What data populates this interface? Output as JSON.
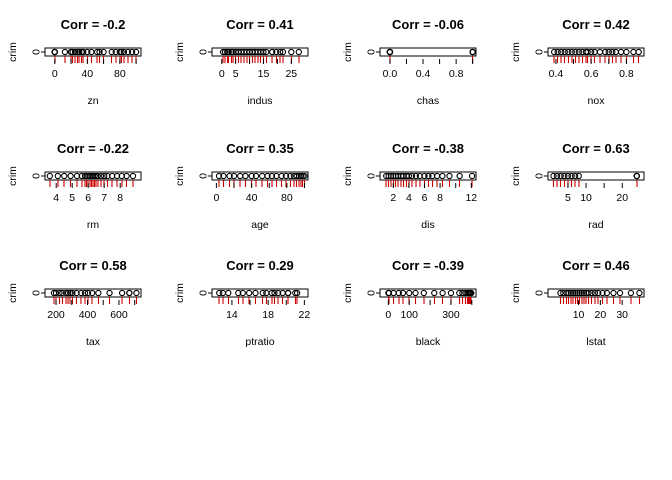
{
  "chart_data": [
    {
      "type": "scatter",
      "title": "Corr = -0.2",
      "xlabel": "zn",
      "ylabel": "crim",
      "ytick": "0",
      "xlim": [
        -12,
        106
      ],
      "xticks": [
        0,
        20,
        40,
        60,
        80,
        100
      ],
      "xtick_labels": [
        "0",
        "",
        "40",
        "",
        "80",
        ""
      ],
      "x": [
        0,
        0,
        0,
        0,
        0,
        12.5,
        20,
        20,
        22,
        25,
        28,
        30,
        33,
        35,
        40,
        45,
        52,
        55,
        60,
        70,
        75,
        80,
        82,
        85,
        90,
        95,
        100
      ],
      "y": [
        0,
        0,
        0,
        0,
        0,
        0,
        0,
        0,
        0,
        0,
        0,
        0,
        0,
        0,
        0,
        0,
        0,
        0,
        0,
        0,
        0,
        0,
        0,
        0,
        0,
        0,
        0
      ]
    },
    {
      "type": "scatter",
      "title": "Corr = 0.41",
      "xlabel": "indus",
      "ylabel": "crim",
      "ytick": "0",
      "xlim": [
        -3.5,
        31
      ],
      "xticks": [
        0,
        5,
        10,
        15,
        20,
        25
      ],
      "xtick_labels": [
        "0",
        "5",
        "",
        "15",
        "",
        "25"
      ],
      "x": [
        0.5,
        1.2,
        2,
        2.5,
        3.5,
        4,
        5,
        6,
        7,
        8,
        9,
        10,
        11,
        12,
        13,
        14,
        15,
        16,
        18.1,
        18.1,
        19.6,
        21,
        22,
        25,
        27.7
      ],
      "y": [
        0,
        0,
        0,
        0,
        0,
        0,
        0,
        0,
        0,
        0,
        0,
        0,
        0,
        0,
        0,
        0,
        0,
        0,
        0,
        0,
        0,
        0,
        0,
        0,
        0
      ]
    },
    {
      "type": "scatter",
      "title": "Corr = -0.06",
      "xlabel": "chas",
      "ylabel": "crim",
      "ytick": "0",
      "xlim": [
        -0.12,
        1.04
      ],
      "xticks": [
        0,
        0.2,
        0.4,
        0.6,
        0.8,
        1
      ],
      "xtick_labels": [
        "0.0",
        "",
        "0.4",
        "",
        "0.8",
        ""
      ],
      "x": [
        0,
        0,
        0,
        0,
        0,
        0,
        0,
        0,
        1,
        1,
        1,
        1
      ],
      "y": [
        0,
        0,
        0,
        0,
        0,
        0,
        0,
        0,
        0,
        0,
        0,
        0
      ]
    },
    {
      "type": "scatter",
      "title": "Corr = 0.42",
      "xlabel": "nox",
      "ylabel": "crim",
      "ytick": "0",
      "xlim": [
        0.355,
        0.9
      ],
      "xticks": [
        0.4,
        0.5,
        0.6,
        0.7,
        0.8
      ],
      "xtick_labels": [
        "0.4",
        "",
        "0.6",
        "",
        "0.8"
      ],
      "x": [
        0.39,
        0.41,
        0.43,
        0.45,
        0.47,
        0.49,
        0.51,
        0.53,
        0.55,
        0.57,
        0.58,
        0.6,
        0.62,
        0.65,
        0.68,
        0.7,
        0.72,
        0.74,
        0.77,
        0.8,
        0.84,
        0.87
      ],
      "y": [
        0,
        0,
        0,
        0,
        0,
        0,
        0,
        0,
        0,
        0,
        0,
        0,
        0,
        0,
        0,
        0,
        0,
        0,
        0,
        0,
        0,
        0
      ]
    },
    {
      "type": "scatter",
      "title": "Corr = -0.22",
      "xlabel": "rm",
      "ylabel": "crim",
      "ytick": "0",
      "xlim": [
        3.3,
        9.3
      ],
      "xticks": [
        4,
        5,
        6,
        7,
        8
      ],
      "xtick_labels": [
        "4",
        "5",
        "6",
        "7",
        "8"
      ],
      "x": [
        3.6,
        4.1,
        4.5,
        4.9,
        5.3,
        5.6,
        5.8,
        5.9,
        6,
        6.1,
        6.2,
        6.3,
        6.4,
        6.5,
        6.6,
        6.8,
        7,
        7.2,
        7.5,
        7.8,
        8.1,
        8.4,
        8.8
      ],
      "y": [
        0,
        0,
        0,
        0,
        0,
        0,
        0,
        0,
        0,
        0,
        0,
        0,
        0,
        0,
        0,
        0,
        0,
        0,
        0,
        0,
        0,
        0,
        0
      ]
    },
    {
      "type": "scatter",
      "title": "Corr = 0.35",
      "xlabel": "age",
      "ylabel": "crim",
      "ytick": "0",
      "xlim": [
        -5,
        104
      ],
      "xticks": [
        0,
        20,
        40,
        60,
        80,
        100
      ],
      "xtick_labels": [
        "0",
        "",
        "40",
        "",
        "80",
        ""
      ],
      "x": [
        3,
        8,
        15,
        20,
        27,
        33,
        40,
        45,
        52,
        58,
        63,
        68,
        74,
        79,
        84,
        88,
        91,
        94,
        96,
        98,
        100
      ],
      "y": [
        0,
        0,
        0,
        0,
        0,
        0,
        0,
        0,
        0,
        0,
        0,
        0,
        0,
        0,
        0,
        0,
        0,
        0,
        0,
        0,
        0
      ]
    },
    {
      "type": "scatter",
      "title": "Corr = -0.38",
      "xlabel": "dis",
      "ylabel": "crim",
      "ytick": "0",
      "xlim": [
        0.3,
        12.6
      ],
      "xticks": [
        2,
        4,
        6,
        8,
        10,
        12
      ],
      "xtick_labels": [
        "2",
        "4",
        "6",
        "8",
        "",
        "12"
      ],
      "x": [
        1.1,
        1.4,
        1.7,
        2,
        2.3,
        2.6,
        3,
        3.3,
        3.7,
        4,
        4.4,
        4.9,
        5.4,
        6,
        6.5,
        7,
        7.6,
        8.3,
        9.2,
        10.5,
        12.1
      ],
      "y": [
        0,
        0,
        0,
        0,
        0,
        0,
        0,
        0,
        0,
        0,
        0,
        0,
        0,
        0,
        0,
        0,
        0,
        0,
        0,
        0,
        0
      ]
    },
    {
      "type": "scatter",
      "title": "Corr = 0.63",
      "xlabel": "rad",
      "ylabel": "crim",
      "ytick": "0",
      "xlim": [
        -0.5,
        26
      ],
      "xticks": [
        5,
        10,
        15,
        20
      ],
      "xtick_labels": [
        "5",
        "10",
        "",
        "20"
      ],
      "x": [
        1,
        2,
        3,
        4,
        5,
        6,
        7,
        8,
        24,
        24,
        24
      ],
      "y": [
        0,
        0,
        0,
        0,
        0,
        0,
        0,
        0,
        0,
        0,
        0
      ]
    },
    {
      "type": "scatter",
      "title": "Corr = 0.58",
      "xlabel": "tax",
      "ylabel": "crim",
      "ytick": "0",
      "xlim": [
        130,
        740
      ],
      "xticks": [
        200,
        300,
        400,
        500,
        600,
        700
      ],
      "xtick_labels": [
        "200",
        "",
        "400",
        "",
        "600",
        ""
      ],
      "x": [
        187,
        200,
        222,
        240,
        264,
        277,
        290,
        304,
        330,
        360,
        384,
        403,
        430,
        469,
        540,
        620,
        666,
        666,
        711
      ],
      "y": [
        0,
        0,
        0,
        0,
        0,
        0,
        0,
        0,
        0,
        0,
        0,
        0,
        0,
        0,
        0,
        0,
        0,
        0,
        0
      ]
    },
    {
      "type": "scatter",
      "title": "Corr = 0.29",
      "xlabel": "ptratio",
      "ylabel": "crim",
      "ytick": "0",
      "xlim": [
        11.8,
        22.4
      ],
      "xticks": [
        14,
        16,
        18,
        20,
        22
      ],
      "xtick_labels": [
        "14",
        "",
        "18",
        "",
        "22"
      ],
      "x": [
        12.6,
        13,
        13.6,
        14.7,
        15.2,
        15.9,
        16.6,
        17.4,
        17.8,
        18.4,
        18.7,
        19.1,
        19.6,
        20.2,
        20.2,
        20.2,
        21,
        21.2
      ],
      "y": [
        0,
        0,
        0,
        0,
        0,
        0,
        0,
        0,
        0,
        0,
        0,
        0,
        0,
        0,
        0,
        0,
        0,
        0
      ]
    },
    {
      "type": "scatter",
      "title": "Corr = -0.39",
      "xlabel": "black",
      "ylabel": "crim",
      "ytick": "0",
      "xlim": [
        -40,
        420
      ],
      "xticks": [
        0,
        100,
        200,
        300,
        400
      ],
      "xtick_labels": [
        "0",
        "100",
        "",
        "300",
        ""
      ],
      "x": [
        0.3,
        3,
        25,
        50,
        70,
        100,
        130,
        170,
        220,
        260,
        300,
        340,
        355,
        370,
        380,
        385,
        390,
        393,
        395,
        396.9,
        396.9
      ],
      "y": [
        0,
        0,
        0,
        0,
        0,
        0,
        0,
        0,
        0,
        0,
        0,
        0,
        0,
        0,
        0,
        0,
        0,
        0,
        0,
        0,
        0
      ]
    },
    {
      "type": "scatter",
      "title": "Corr = 0.46",
      "xlabel": "lstat",
      "ylabel": "crim",
      "ytick": "0",
      "xlim": [
        -4,
        40
      ],
      "xticks": [
        10,
        20,
        30
      ],
      "xtick_labels": [
        "10",
        "20",
        "30"
      ],
      "x": [
        1.7,
        3,
        4.5,
        5.5,
        6.5,
        7.5,
        8.5,
        9.5,
        10.5,
        11.5,
        12.5,
        13.5,
        14.5,
        16,
        17.5,
        19,
        21,
        23,
        26,
        29,
        34,
        37.9
      ],
      "y": [
        0,
        0,
        0,
        0,
        0,
        0,
        0,
        0,
        0,
        0,
        0,
        0,
        0,
        0,
        0,
        0,
        0,
        0,
        0,
        0,
        0,
        0
      ]
    }
  ]
}
